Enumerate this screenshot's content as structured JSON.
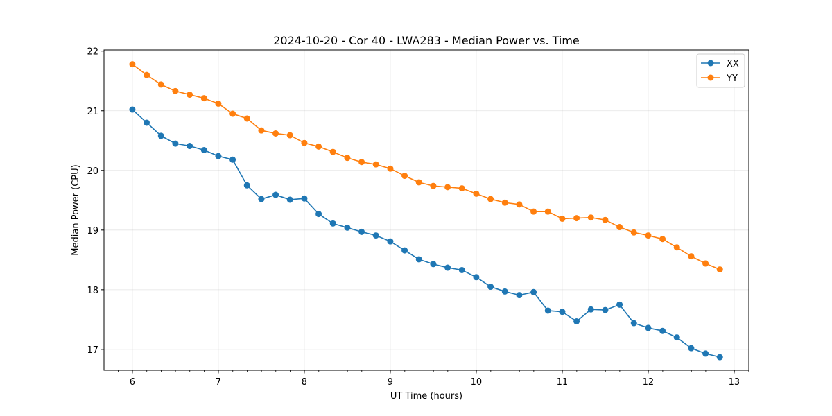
{
  "chart_data": {
    "type": "line",
    "title": "2024-10-20 - Cor 40 - LWA283 - Median Power vs. Time",
    "xlabel": "UT Time (hours)",
    "ylabel": "Median Power (CPU)",
    "xlim": [
      5.67,
      13.17
    ],
    "ylim": [
      16.65,
      22.02
    ],
    "xticks": [
      6,
      7,
      8,
      9,
      10,
      11,
      12,
      13
    ],
    "xtick_labels": [
      "6",
      "7",
      "8",
      "9",
      "10",
      "11",
      "12",
      "13"
    ],
    "yticks": [
      17,
      18,
      19,
      20,
      21,
      22
    ],
    "ytick_labels": [
      "17",
      "18",
      "19",
      "20",
      "21",
      "22"
    ],
    "x_minor_step": 0.1667,
    "grid": true,
    "legend_position": "top-right",
    "x": [
      6.0,
      6.1667,
      6.3333,
      6.5,
      6.6667,
      6.8333,
      7.0,
      7.1667,
      7.3333,
      7.5,
      7.6667,
      7.8333,
      8.0,
      8.1667,
      8.3333,
      8.5,
      8.6667,
      8.8333,
      9.0,
      9.1667,
      9.3333,
      9.5,
      9.6667,
      9.8333,
      10.0,
      10.1667,
      10.3333,
      10.5,
      10.6667,
      10.8333,
      11.0,
      11.1667,
      11.3333,
      11.5,
      11.6667,
      11.8333,
      12.0,
      12.1667,
      12.3333,
      12.5,
      12.6667,
      12.8333
    ],
    "series": [
      {
        "name": "XX",
        "color": "#1f77b4",
        "values": [
          21.02,
          20.8,
          20.58,
          20.45,
          20.41,
          20.34,
          20.24,
          20.18,
          19.75,
          19.52,
          19.59,
          19.51,
          19.53,
          19.27,
          19.11,
          19.04,
          18.97,
          18.91,
          18.81,
          18.66,
          18.51,
          18.43,
          18.37,
          18.33,
          18.21,
          18.05,
          17.97,
          17.91,
          17.96,
          17.65,
          17.63,
          17.47,
          17.67,
          17.66,
          17.75,
          17.44,
          17.36,
          17.31,
          17.2,
          17.02,
          16.93,
          16.87
        ]
      },
      {
        "name": "YY",
        "color": "#ff7f0e",
        "values": [
          21.78,
          21.6,
          21.44,
          21.33,
          21.27,
          21.21,
          21.12,
          20.95,
          20.87,
          20.67,
          20.62,
          20.59,
          20.46,
          20.4,
          20.31,
          20.21,
          20.14,
          20.1,
          20.03,
          19.91,
          19.8,
          19.74,
          19.72,
          19.7,
          19.61,
          19.52,
          19.46,
          19.43,
          19.31,
          19.31,
          19.19,
          19.2,
          19.21,
          19.17,
          19.05,
          18.96,
          18.91,
          18.85,
          18.71,
          18.56,
          18.44,
          18.34
        ]
      }
    ]
  }
}
